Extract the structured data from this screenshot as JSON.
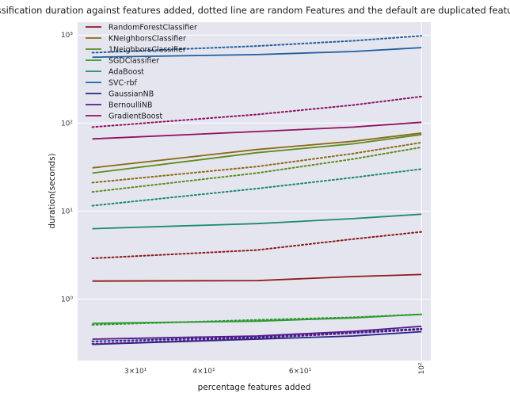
{
  "chart_data": {
    "type": "line",
    "title": "classification duration against features added, dotted line are random Features and the default are duplicated features",
    "xlabel": "percentage features added",
    "ylabel": "duration(seconds)",
    "x_scale": "log",
    "y_scale": "log",
    "xlim": [
      23.5,
      104
    ],
    "ylim": [
      0.2,
      1400
    ],
    "grid": true,
    "legend_position": "top-left",
    "x_ticks": [
      {
        "value": 30,
        "label": "3×10¹",
        "major": false
      },
      {
        "value": 40,
        "label": "4×10¹",
        "major": false
      },
      {
        "value": 60,
        "label": "6×10¹",
        "major": false
      },
      {
        "value": 100,
        "label": "10²",
        "major": true
      }
    ],
    "y_ticks": [
      {
        "value": 1,
        "label": "10⁰"
      },
      {
        "value": 10,
        "label": "10¹"
      },
      {
        "value": 100,
        "label": "10²"
      },
      {
        "value": 1000,
        "label": "10³"
      }
    ],
    "x": [
      25,
      50,
      75,
      100
    ],
    "series": [
      {
        "name": "RandomForestClassifier",
        "color": "#8b1a1a",
        "solid": [
          1.6,
          1.62,
          1.8,
          1.9
        ],
        "dotted": [
          2.9,
          3.6,
          4.8,
          5.8
        ]
      },
      {
        "name": "KNeighborsClassifier",
        "color": "#8b6914",
        "solid": [
          31,
          50,
          62,
          77
        ],
        "dotted": [
          21,
          32,
          45,
          60
        ]
      },
      {
        "name": "1NeighborsClassifier",
        "color": "#5b8c1a",
        "solid": [
          27,
          46,
          58,
          74
        ],
        "dotted": [
          16.5,
          27,
          39,
          53
        ]
      },
      {
        "name": "SGDClassifier",
        "color": "#2a9a2a",
        "solid": [
          0.53,
          0.56,
          0.61,
          0.67
        ],
        "dotted": [
          0.51,
          0.58,
          0.62,
          0.67
        ]
      },
      {
        "name": "AdaBoost",
        "color": "#1a8a70",
        "solid": [
          6.3,
          7.2,
          8.2,
          9.2
        ],
        "dotted": [
          11.5,
          18,
          24,
          30
        ]
      },
      {
        "name": "SVC-rbf",
        "color": "#1f5f9f",
        "solid": [
          560,
          600,
          650,
          720
        ],
        "dotted": [
          630,
          750,
          860,
          980
        ]
      },
      {
        "name": "GaussianNB",
        "color": "#25258a",
        "solid": [
          0.305,
          0.35,
          0.38,
          0.425
        ],
        "dotted": [
          0.33,
          0.37,
          0.42,
          0.46
        ]
      },
      {
        "name": "BernoulliNB",
        "color": "#5a1a8a",
        "solid": [
          0.35,
          0.38,
          0.43,
          0.49
        ],
        "dotted": [
          0.31,
          0.36,
          0.41,
          0.45
        ]
      },
      {
        "name": "GradientBoost",
        "color": "#8e1060",
        "solid": [
          66,
          80,
          90,
          102
        ],
        "dotted": [
          90,
          125,
          160,
          200
        ]
      }
    ]
  }
}
